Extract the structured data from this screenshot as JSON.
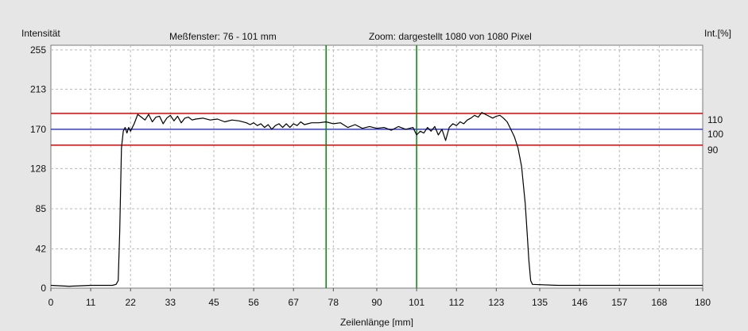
{
  "chart_data": {
    "type": "line",
    "header": {
      "ylabel_left": "Intensität",
      "window_label": "Meßfenster:  76 - 101 mm",
      "zoom_label": "Zoom: dargestellt 1080 von 1080 Pixel",
      "ylabel_right": "Int.[%]"
    },
    "xlabel": "Zeilenlänge [mm]",
    "xlim": [
      0,
      180
    ],
    "ylim": [
      0,
      260
    ],
    "grid": true,
    "x_ticks": [
      0,
      11,
      22,
      33,
      45,
      56,
      67,
      78,
      90,
      101,
      112,
      123,
      135,
      146,
      157,
      168,
      180
    ],
    "y_ticks": [
      0,
      42,
      85,
      128,
      170,
      213,
      255
    ],
    "right_ticks": [
      {
        "label": "110",
        "y": 180
      },
      {
        "label": "100",
        "y": 165
      },
      {
        "label": "90",
        "y": 148
      }
    ],
    "reference_lines": {
      "red": [
        187,
        153
      ],
      "blue": 170,
      "color_red": "#e00000",
      "color_blue": "#3a3ad0"
    },
    "window_markers": {
      "x": [
        76,
        101
      ],
      "color": "#008a00"
    },
    "series": [
      {
        "color": "#000000",
        "points": [
          [
            0,
            3
          ],
          [
            5,
            2
          ],
          [
            11,
            3
          ],
          [
            17,
            3
          ],
          [
            18,
            4
          ],
          [
            18.6,
            8
          ],
          [
            19,
            60
          ],
          [
            19.5,
            150
          ],
          [
            20,
            168
          ],
          [
            20.5,
            172
          ],
          [
            21,
            166
          ],
          [
            21.5,
            172
          ],
          [
            22,
            168
          ],
          [
            23,
            176
          ],
          [
            24,
            186
          ],
          [
            25,
            183
          ],
          [
            26,
            180
          ],
          [
            27,
            186
          ],
          [
            28,
            178
          ],
          [
            29,
            183
          ],
          [
            30,
            184
          ],
          [
            31,
            176
          ],
          [
            32,
            182
          ],
          [
            33,
            185
          ],
          [
            34,
            179
          ],
          [
            35,
            184
          ],
          [
            36,
            177
          ],
          [
            37,
            182
          ],
          [
            38,
            183
          ],
          [
            39,
            180
          ],
          [
            40,
            181
          ],
          [
            42,
            182
          ],
          [
            44,
            180
          ],
          [
            46,
            181
          ],
          [
            48,
            178
          ],
          [
            50,
            180
          ],
          [
            52,
            179
          ],
          [
            54,
            177
          ],
          [
            55,
            175
          ],
          [
            56,
            177
          ],
          [
            57,
            174
          ],
          [
            58,
            176
          ],
          [
            59,
            172
          ],
          [
            60,
            175
          ],
          [
            61,
            170
          ],
          [
            62,
            174
          ],
          [
            63,
            176
          ],
          [
            64,
            172
          ],
          [
            65,
            176
          ],
          [
            66,
            172
          ],
          [
            67,
            176
          ],
          [
            68,
            174
          ],
          [
            69,
            178
          ],
          [
            70,
            175
          ],
          [
            72,
            177
          ],
          [
            74,
            177
          ],
          [
            76,
            178
          ],
          [
            78,
            176
          ],
          [
            80,
            177
          ],
          [
            82,
            172
          ],
          [
            84,
            175
          ],
          [
            86,
            171
          ],
          [
            88,
            173
          ],
          [
            90,
            171
          ],
          [
            92,
            172
          ],
          [
            94,
            169
          ],
          [
            96,
            173
          ],
          [
            98,
            170
          ],
          [
            100,
            172
          ],
          [
            101,
            164
          ],
          [
            102,
            168
          ],
          [
            103,
            166
          ],
          [
            104,
            172
          ],
          [
            105,
            168
          ],
          [
            106,
            173
          ],
          [
            107,
            164
          ],
          [
            108,
            170
          ],
          [
            109,
            158
          ],
          [
            110,
            172
          ],
          [
            111,
            176
          ],
          [
            112,
            174
          ],
          [
            113,
            178
          ],
          [
            114,
            176
          ],
          [
            115,
            180
          ],
          [
            116,
            182
          ],
          [
            117,
            185
          ],
          [
            118,
            183
          ],
          [
            119,
            188
          ],
          [
            120,
            186
          ],
          [
            121,
            184
          ],
          [
            122,
            182
          ],
          [
            123,
            184
          ],
          [
            124,
            185
          ],
          [
            125,
            182
          ],
          [
            126,
            178
          ],
          [
            127,
            170
          ],
          [
            128,
            162
          ],
          [
            129,
            150
          ],
          [
            130,
            130
          ],
          [
            131,
            90
          ],
          [
            131.5,
            60
          ],
          [
            132,
            30
          ],
          [
            132.5,
            8
          ],
          [
            133,
            4
          ],
          [
            140,
            3
          ],
          [
            150,
            3
          ],
          [
            160,
            3
          ],
          [
            170,
            3
          ],
          [
            180,
            3
          ]
        ]
      }
    ]
  }
}
